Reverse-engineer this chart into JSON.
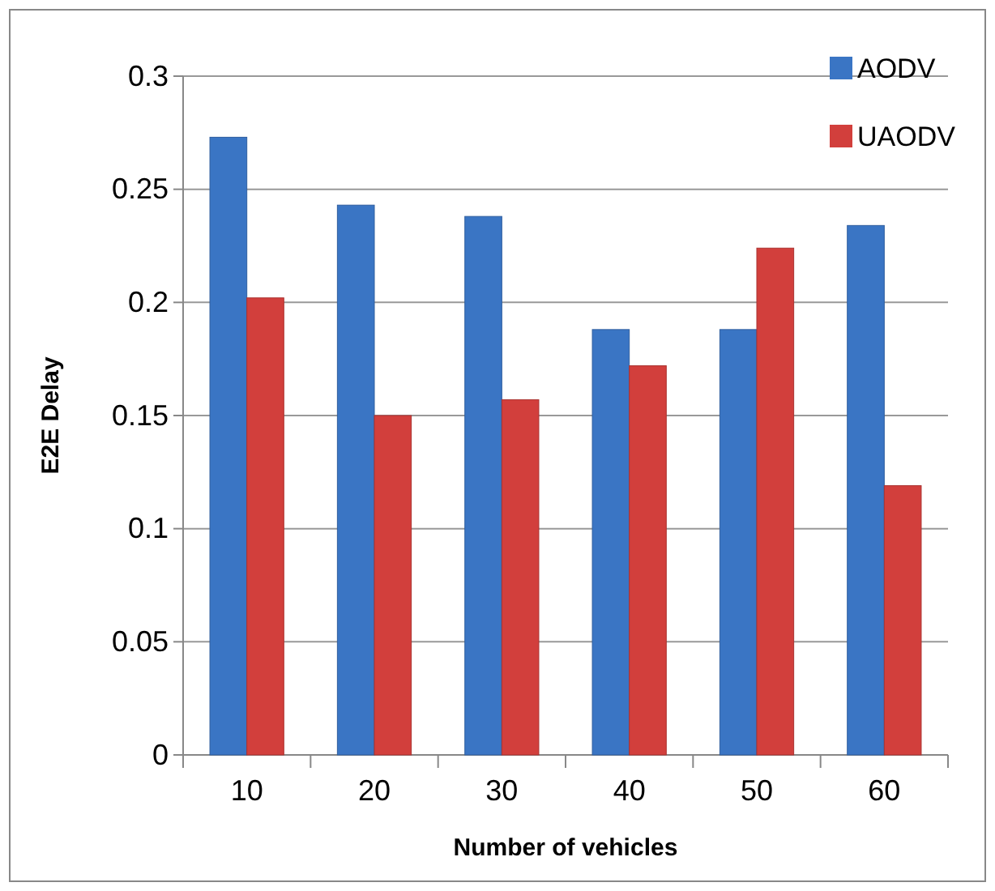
{
  "chart_data": {
    "type": "bar",
    "xlabel": "Number of vehicles",
    "ylabel": "E2E Delay",
    "categories": [
      "10",
      "20",
      "30",
      "40",
      "50",
      "60"
    ],
    "series": [
      {
        "name": "AODV",
        "color": "#3a75c4",
        "values": [
          0.273,
          0.243,
          0.238,
          0.188,
          0.188,
          0.234
        ]
      },
      {
        "name": "UAODV",
        "color": "#d23f3c",
        "values": [
          0.202,
          0.15,
          0.157,
          0.172,
          0.224,
          0.119
        ]
      }
    ],
    "ylim": [
      0,
      0.3
    ],
    "yticks": [
      0,
      0.05,
      0.1,
      0.15,
      0.2,
      0.25,
      0.3
    ],
    "grid": "y",
    "legend": "top right"
  }
}
